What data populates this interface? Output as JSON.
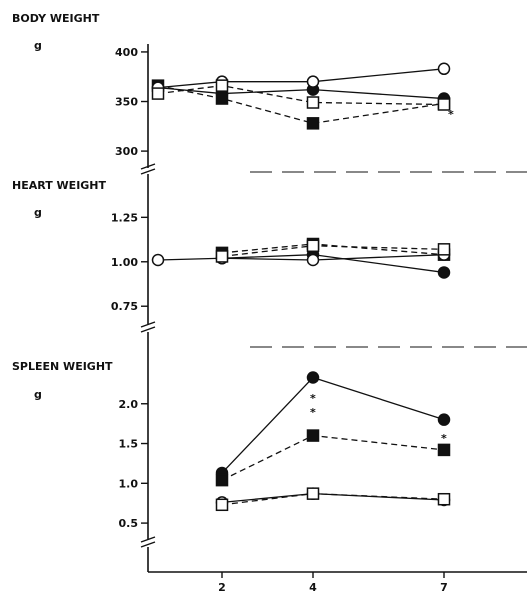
{
  "chart_data": [
    {
      "type": "line",
      "title": "BODY WEIGHT",
      "unit": "g",
      "x": [
        1,
        2,
        4,
        7
      ],
      "yticks": [
        300,
        350,
        400
      ],
      "ylim": [
        288,
        408
      ],
      "series": [
        {
          "marker": "filled-circle",
          "dash": "solid",
          "values": [
            364,
            358,
            362,
            353
          ]
        },
        {
          "marker": "filled-square",
          "dash": "dashed",
          "values": [
            366,
            353,
            328,
            348
          ]
        },
        {
          "marker": "open-circle",
          "dash": "solid",
          "values": [
            364,
            370,
            370,
            383
          ]
        },
        {
          "marker": "open-square",
          "dash": "dashed",
          "values": [
            358,
            366,
            349,
            347
          ]
        }
      ],
      "annotations": [
        "*"
      ]
    },
    {
      "type": "line",
      "title": "HEART WEIGHT",
      "unit": "g",
      "x": [
        1,
        2,
        4,
        7
      ],
      "yticks": [
        0.75,
        1.0,
        1.25
      ],
      "ylim": [
        0.65,
        1.37
      ],
      "series": [
        {
          "marker": "filled-circle",
          "dash": "solid",
          "values": [
            null,
            1.02,
            1.04,
            0.94
          ]
        },
        {
          "marker": "filled-square",
          "dash": "dashed",
          "values": [
            null,
            1.05,
            1.1,
            1.04
          ]
        },
        {
          "marker": "open-circle",
          "dash": "solid",
          "values": [
            1.01,
            1.02,
            1.01,
            1.04
          ]
        },
        {
          "marker": "open-square",
          "dash": "dashed",
          "values": [
            null,
            1.03,
            1.09,
            1.07
          ]
        }
      ]
    },
    {
      "type": "line",
      "title": "SPLEEN WEIGHT",
      "unit": "g",
      "x": [
        1,
        2,
        4,
        7
      ],
      "xticks": [
        2,
        4,
        7
      ],
      "yticks": [
        0.5,
        1.0,
        1.5,
        2.0
      ],
      "ylim": [
        0.3,
        2.55
      ],
      "series": [
        {
          "marker": "filled-circle",
          "dash": "solid",
          "values": [
            null,
            1.13,
            2.33,
            1.8
          ]
        },
        {
          "marker": "filled-square",
          "dash": "dashed",
          "values": [
            null,
            1.04,
            1.6,
            1.42
          ]
        },
        {
          "marker": "open-circle",
          "dash": "solid",
          "values": [
            null,
            0.76,
            0.87,
            0.79
          ]
        },
        {
          "marker": "open-square",
          "dash": "dashed",
          "values": [
            null,
            0.73,
            0.87,
            0.8
          ]
        }
      ],
      "annotations": [
        "*",
        "*",
        "*",
        "*"
      ]
    }
  ],
  "colors": {
    "ink": "#111111",
    "background": "#ffffff"
  }
}
